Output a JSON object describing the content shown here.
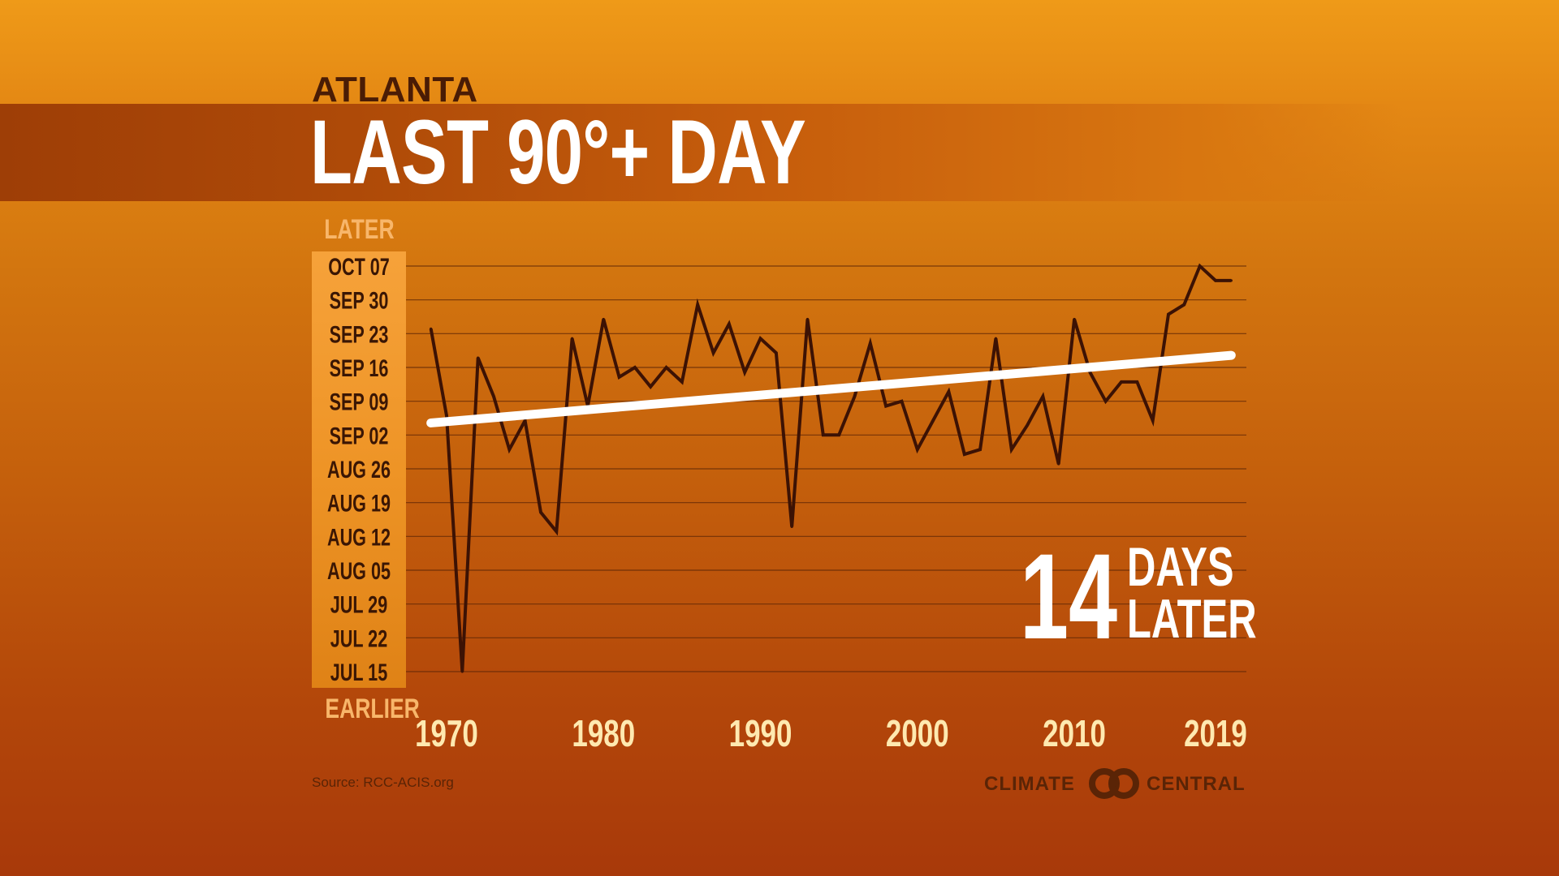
{
  "header": {
    "city": "ATLANTA",
    "title": "LAST 90°+ DAY"
  },
  "axis_words": {
    "top": "LATER",
    "bottom": "EARLIER"
  },
  "callout": {
    "number": "14",
    "line1": "DAYS",
    "line2": "LATER"
  },
  "footer": {
    "source": "Source: RCC-ACIS.org",
    "brand_left": "CLIMATE",
    "brand_right": "CENTRAL"
  },
  "colors": {
    "series_line": "#3c1204",
    "trend_line": "#ffffff",
    "grid_line": "#5a2406",
    "tick_text_y": "#3a1604",
    "tick_text_x": "#ffe9b0"
  },
  "chart_data": {
    "type": "line",
    "title": "LAST 90°+ DAY",
    "xlabel": "",
    "ylabel": "",
    "y_unit": "days after Jul 15",
    "xlim": [
      1970,
      2019
    ],
    "ylim": [
      0,
      84
    ],
    "x_ticks": [
      1970,
      1980,
      1990,
      2000,
      2010,
      2019
    ],
    "y_ticks": [
      {
        "label": "JUL 15",
        "value": 0
      },
      {
        "label": "JUL 22",
        "value": 7
      },
      {
        "label": "JUL 29",
        "value": 14
      },
      {
        "label": "AUG 05",
        "value": 21
      },
      {
        "label": "AUG 12",
        "value": 28
      },
      {
        "label": "AUG 19",
        "value": 35
      },
      {
        "label": "AUG 26",
        "value": 42
      },
      {
        "label": "SEP 02",
        "value": 49
      },
      {
        "label": "SEP 09",
        "value": 56
      },
      {
        "label": "SEP 16",
        "value": 63
      },
      {
        "label": "SEP 23",
        "value": 70
      },
      {
        "label": "SEP 30",
        "value": 77
      },
      {
        "label": "OCT 07",
        "value": 84
      }
    ],
    "series": [
      {
        "name": "Last 90°+ day",
        "x": [
          1969,
          1970,
          1971,
          1972,
          1973,
          1974,
          1975,
          1976,
          1977,
          1978,
          1979,
          1980,
          1981,
          1982,
          1983,
          1984,
          1985,
          1986,
          1987,
          1988,
          1989,
          1990,
          1991,
          1992,
          1993,
          1994,
          1995,
          1996,
          1997,
          1998,
          1999,
          2000,
          2001,
          2002,
          2003,
          2004,
          2005,
          2006,
          2007,
          2008,
          2009,
          2010,
          2011,
          2012,
          2013,
          2014,
          2015,
          2016,
          2017,
          2018,
          2019,
          2020
        ],
        "values": [
          71,
          53,
          0,
          65,
          57,
          46,
          52,
          33,
          29,
          69,
          55,
          73,
          61,
          63,
          59,
          63,
          60,
          76,
          66,
          72,
          62,
          69,
          66,
          30,
          73,
          49,
          49,
          57,
          68,
          55,
          56,
          46,
          52,
          58,
          45,
          46,
          69,
          46,
          51,
          57,
          43,
          73,
          62,
          56,
          60,
          60,
          52,
          74,
          76,
          84,
          81,
          81
        ]
      },
      {
        "name": "Trend",
        "x": [
          1969,
          2020
        ],
        "values": [
          51.5,
          65.5
        ]
      }
    ],
    "trend_change_days": 14,
    "grid": true
  }
}
